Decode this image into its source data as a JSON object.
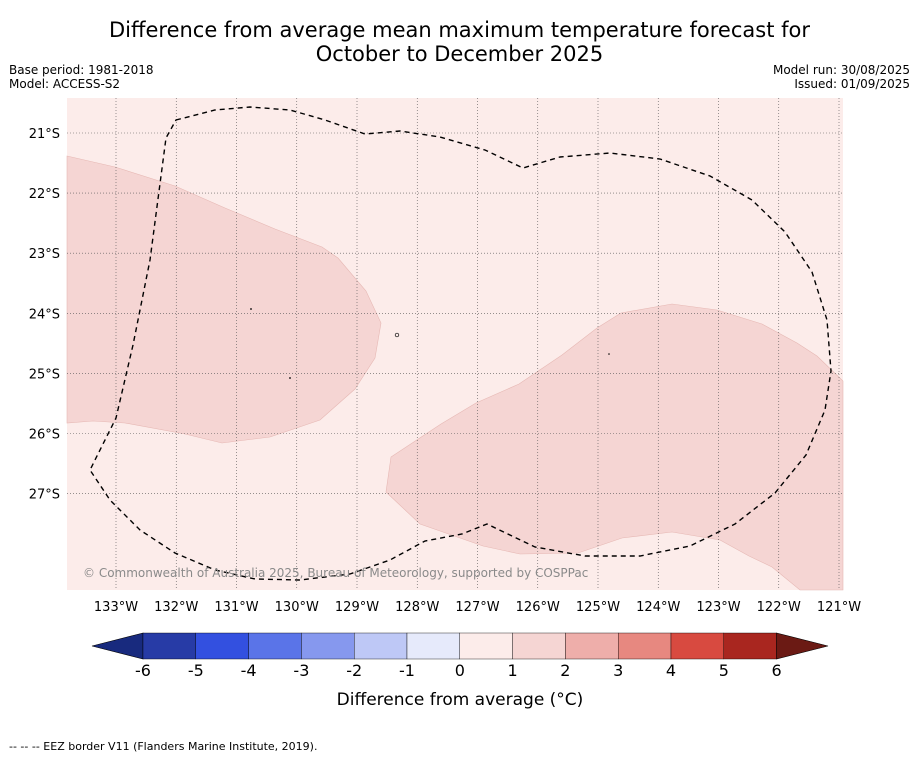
{
  "title_line1": "Difference from average mean maximum temperature forecast for",
  "title_line2": "October to December 2025",
  "meta_left": [
    "Base period: 1981-2018",
    "Model: ACCESS-S2"
  ],
  "meta_right": [
    "Model run: 30/08/2025",
    "Issued: 01/09/2025"
  ],
  "copyright": "© Commonwealth of Australia 2025, Bureau of Meteorology, supported by COSPPac",
  "lon_labels": [
    "133°W",
    "132°W",
    "131°W",
    "130°W",
    "129°W",
    "128°W",
    "127°W",
    "126°W",
    "125°W",
    "124°W",
    "123°W",
    "122°W",
    "121°W"
  ],
  "lat_labels": [
    "21°S",
    "22°S",
    "23°S",
    "24°S",
    "25°S",
    "26°S",
    "27°S"
  ],
  "colorbar": {
    "ticks": [
      "-6",
      "-5",
      "-4",
      "-3",
      "-2",
      "-1",
      "0",
      "1",
      "2",
      "3",
      "4",
      "5",
      "6"
    ],
    "colors": [
      "#273ba6",
      "#3350e0",
      "#5a74e8",
      "#8698ee",
      "#bec8f6",
      "#e6eafb",
      "#fcecea",
      "#f5d5d3",
      "#eeaeaa",
      "#e78880",
      "#d84a40",
      "#a9261f"
    ],
    "under_color": "#182a7e",
    "over_color": "#6b1a14",
    "label": "Difference from average (°C)"
  },
  "map": {
    "background_class_color": "#fcecea",
    "anomaly_class_color": "#f5d5d3",
    "lon_range": [
      -133.8,
      -120.9
    ],
    "lat_range": [
      -28.6,
      -20.4
    ]
  },
  "footer": "--  --  -- EEZ border V11 (Flanders Marine Institute, 2019)."
}
